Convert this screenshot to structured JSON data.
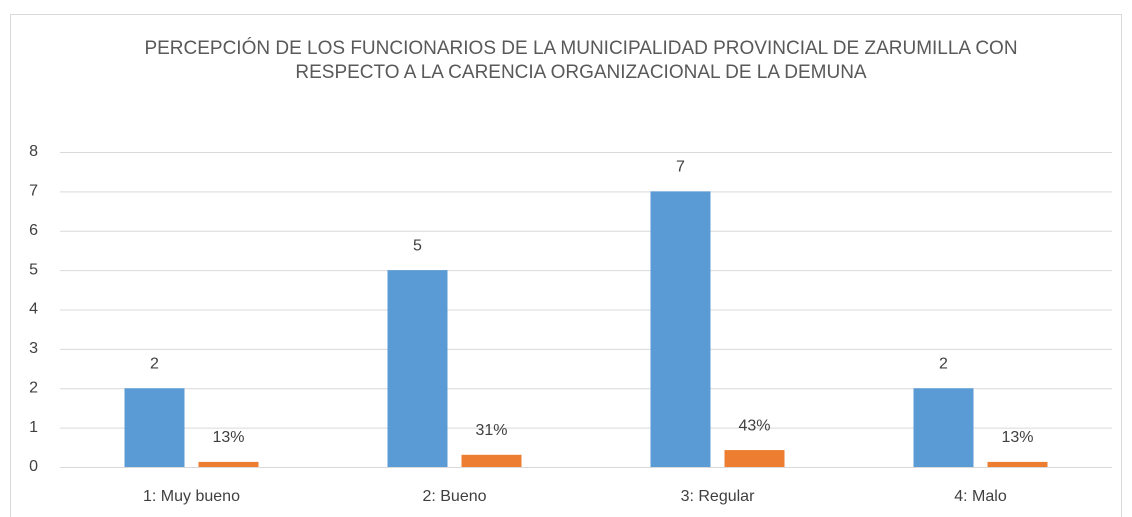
{
  "chart_data": {
    "type": "bar",
    "title": "PERCEPCIÓN DE LOS FUNCIONARIOS DE LA MUNICIPALIDAD PROVINCIAL DE ZARUMILLA CON RESPECTO A LA CARENCIA ORGANIZACIONAL DE LA DEMUNA",
    "categories": [
      "1: Muy bueno",
      "2: Bueno",
      "3: Regular",
      "4: Malo"
    ],
    "series": [
      {
        "color": "#5b9bd5",
        "values": [
          2,
          5,
          7,
          2
        ]
      },
      {
        "color": "#ed7d31",
        "values": [
          0.13,
          0.31,
          0.43,
          0.13
        ],
        "value_labels": [
          "13%",
          "31%",
          "43%",
          "13%"
        ]
      }
    ],
    "ylim": [
      0,
      8
    ],
    "yticks": [
      0,
      1,
      2,
      3,
      4,
      5,
      6,
      7,
      8
    ],
    "grid": true
  }
}
